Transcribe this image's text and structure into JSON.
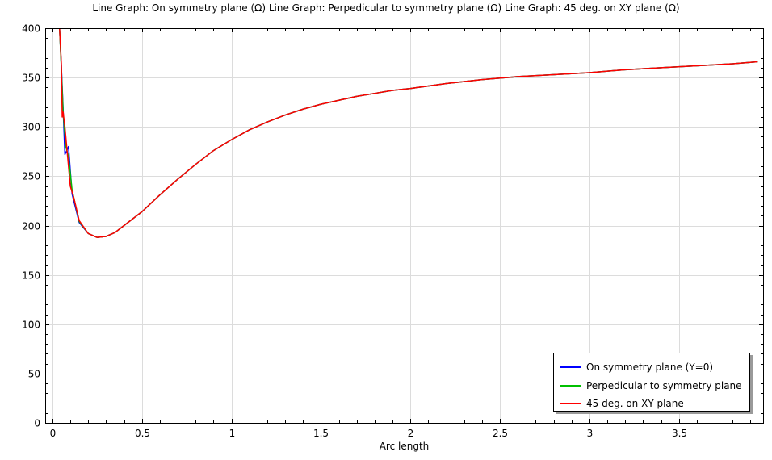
{
  "chart_data": {
    "type": "line",
    "title": "Line Graph: On symmetry plane (Ω)  Line Graph: Perpedicular to symmetry plane (Ω)  Line Graph: 45 deg. on XY plane (Ω)",
    "xlabel": "Arc length",
    "ylabel": "",
    "xlim": [
      -0.04,
      3.97
    ],
    "ylim": [
      0,
      400
    ],
    "xticks": [
      0,
      0.5,
      1,
      1.5,
      2,
      2.5,
      3,
      3.5
    ],
    "xtick_labels": [
      "0",
      "0.5",
      "1",
      "1.5",
      "2",
      "2.5",
      "3",
      "3.5"
    ],
    "yticks": [
      0,
      50,
      100,
      150,
      200,
      250,
      300,
      350,
      400
    ],
    "ytick_labels": [
      "0",
      "50",
      "100",
      "150",
      "200",
      "250",
      "300",
      "350",
      "400"
    ],
    "grid": true,
    "legend_position": "bottom-right",
    "series": [
      {
        "name": "On symmetry plane (Y=0)",
        "color": "#0000ff",
        "x": [
          0.04,
          0.05,
          0.06,
          0.07,
          0.09,
          0.11,
          0.15,
          0.2,
          0.25,
          0.3,
          0.35,
          0.4,
          0.5,
          0.6,
          0.7,
          0.8,
          0.9,
          1.0,
          1.1,
          1.2,
          1.3,
          1.4,
          1.5,
          1.6,
          1.7,
          1.8,
          1.9,
          2.0,
          2.2,
          2.4,
          2.6,
          2.8,
          3.0,
          3.2,
          3.4,
          3.6,
          3.8,
          3.94
        ],
        "y": [
          400,
          362,
          318,
          272,
          280,
          232,
          203,
          192,
          188,
          189,
          193,
          200,
          214,
          231,
          247,
          262,
          276,
          287,
          297,
          305,
          312,
          318,
          323,
          327,
          331,
          334,
          337,
          339,
          344,
          348,
          351,
          353,
          355,
          358,
          360,
          362,
          364,
          366
        ]
      },
      {
        "name": "Perpedicular to symmetry plane",
        "color": "#00c000",
        "x": [
          0.04,
          0.05,
          0.06,
          0.075,
          0.09,
          0.11,
          0.15,
          0.2,
          0.25,
          0.3,
          0.35,
          0.4,
          0.5,
          0.6,
          0.7,
          0.8,
          0.9,
          1.0,
          1.1,
          1.2,
          1.3,
          1.4,
          1.5,
          1.6,
          1.7,
          1.8,
          1.9,
          2.0,
          2.2,
          2.4,
          2.6,
          2.8,
          3.0,
          3.2,
          3.4,
          3.6,
          3.8,
          3.94
        ],
        "y": [
          400,
          360,
          315,
          280,
          270,
          236,
          204,
          192,
          188,
          189,
          193,
          200,
          214,
          231,
          247,
          262,
          276,
          287,
          297,
          305,
          312,
          318,
          323,
          327,
          331,
          334,
          337,
          339,
          344,
          348,
          351,
          353,
          355,
          358,
          360,
          362,
          364,
          366
        ]
      },
      {
        "name": "45 deg. on XY plane",
        "color": "#ff0000",
        "x": [
          0.04,
          0.05,
          0.055,
          0.06,
          0.07,
          0.08,
          0.1,
          0.12,
          0.15,
          0.2,
          0.25,
          0.3,
          0.35,
          0.4,
          0.5,
          0.6,
          0.7,
          0.8,
          0.9,
          1.0,
          1.1,
          1.2,
          1.3,
          1.4,
          1.5,
          1.6,
          1.7,
          1.8,
          1.9,
          2.0,
          2.2,
          2.4,
          2.6,
          2.8,
          3.0,
          3.2,
          3.4,
          3.6,
          3.8,
          3.94
        ],
        "y": [
          400,
          365,
          310,
          315,
          300,
          280,
          240,
          228,
          205,
          192,
          188,
          189,
          193,
          200,
          214,
          231,
          247,
          262,
          276,
          287,
          297,
          305,
          312,
          318,
          323,
          327,
          331,
          334,
          337,
          339,
          344,
          348,
          351,
          353,
          355,
          358,
          360,
          362,
          364,
          366
        ]
      }
    ]
  }
}
